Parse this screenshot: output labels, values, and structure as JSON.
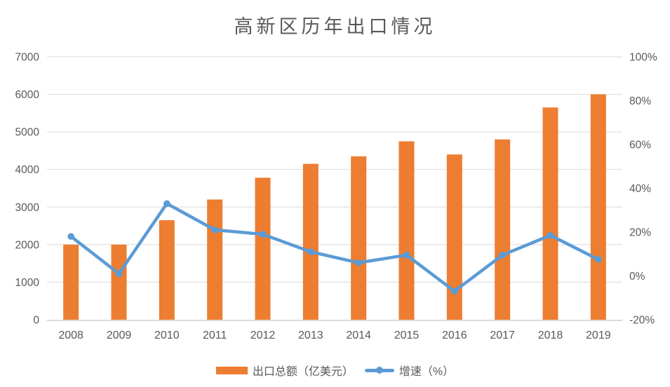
{
  "title": "高新区历年出口情况",
  "legend": {
    "bar_label": "出口总额（亿美元）",
    "line_label": "增速（%）"
  },
  "colors": {
    "bar": "#ED7D31",
    "line": "#5B9BD5",
    "grid": "#D9D9D9",
    "axis_line": "#D9D9D9",
    "text": "#595959"
  },
  "chart_data": {
    "type": "bar",
    "subtype": "combo-bar-line",
    "title": "高新区历年出口情况",
    "categories": [
      "2008",
      "2009",
      "2010",
      "2011",
      "2012",
      "2013",
      "2014",
      "2015",
      "2016",
      "2017",
      "2018",
      "2019"
    ],
    "series": [
      {
        "name": "出口总额（亿美元）",
        "type": "bar",
        "axis": "left",
        "color": "#ED7D31",
        "values": [
          2000,
          2000,
          2650,
          3200,
          3780,
          4150,
          4350,
          4750,
          4400,
          4800,
          5650,
          6000
        ]
      },
      {
        "name": "增速（%）",
        "type": "line",
        "axis": "right",
        "color": "#5B9BD5",
        "values": [
          18,
          1,
          33,
          21,
          19,
          11,
          6,
          9.5,
          -7,
          9.5,
          18.5,
          7.5
        ]
      }
    ],
    "left_axis": {
      "min": 0,
      "max": 7000,
      "step": 1000,
      "tick_labels": [
        "0",
        "1000",
        "2000",
        "3000",
        "4000",
        "5000",
        "6000",
        "7000"
      ]
    },
    "right_axis": {
      "min": -20,
      "max": 100,
      "step": 20,
      "tick_labels": [
        "-20%",
        "0%",
        "20%",
        "40%",
        "60%",
        "80%",
        "100%"
      ]
    },
    "grid": true,
    "legend_position": "bottom",
    "xlabel": "",
    "ylabel_left": "出口总额（亿美元）",
    "ylabel_right": "增速（%）"
  }
}
